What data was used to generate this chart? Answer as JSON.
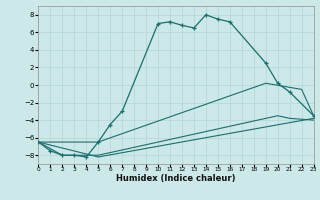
{
  "xlabel": "Humidex (Indice chaleur)",
  "bg_color": "#cce8e8",
  "line_color": "#1a6e6e",
  "grid_color": "#b8d8d8",
  "xlim": [
    0,
    23
  ],
  "ylim": [
    -9,
    9
  ],
  "xticks": [
    0,
    1,
    2,
    3,
    4,
    5,
    6,
    7,
    8,
    9,
    10,
    11,
    12,
    13,
    14,
    15,
    16,
    17,
    18,
    19,
    20,
    21,
    22,
    23
  ],
  "yticks": [
    -8,
    -6,
    -4,
    -2,
    0,
    2,
    4,
    6,
    8
  ],
  "main_x": [
    0,
    1,
    2,
    3,
    4,
    5,
    6,
    7,
    10,
    11,
    12,
    13,
    14,
    15,
    16,
    19,
    20,
    21,
    23
  ],
  "main_y": [
    -6.5,
    -7.5,
    -8.0,
    -8.0,
    -8.2,
    -6.5,
    -4.5,
    -3.0,
    7.0,
    7.2,
    6.8,
    6.5,
    8.0,
    7.5,
    7.2,
    2.5,
    0.2,
    -0.8,
    -3.5
  ],
  "line2_x": [
    0,
    5,
    19,
    22,
    23
  ],
  "line2_y": [
    -6.5,
    -6.5,
    0.2,
    -0.5,
    -3.5
  ],
  "line3_x": [
    0,
    2,
    5,
    20,
    21,
    23
  ],
  "line3_y": [
    -6.5,
    -8.0,
    -8.0,
    -3.5,
    -3.8,
    -4.0
  ],
  "line4_x": [
    0,
    5,
    23
  ],
  "line4_y": [
    -6.5,
    -8.2,
    -3.8
  ]
}
